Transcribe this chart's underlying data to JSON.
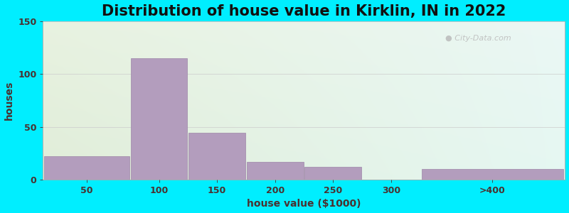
{
  "title": "Distribution of house value in Kirklin, IN in 2022",
  "xlabel": "house value ($1000)",
  "ylabel": "houses",
  "bar_labels": [
    "50",
    "100",
    "150",
    "200",
    "250",
    "300",
    ">400"
  ],
  "bar_heights": [
    22,
    115,
    44,
    17,
    12,
    0,
    10
  ],
  "bar_color": "#b39dbd",
  "bar_edge_color": "#9e86a8",
  "ylim": [
    0,
    150
  ],
  "yticks": [
    0,
    50,
    100,
    150
  ],
  "bar_lefts": [
    0,
    75,
    125,
    175,
    225,
    275,
    325
  ],
  "bar_widths": [
    75,
    50,
    50,
    50,
    50,
    50,
    125
  ],
  "xlim": [
    0,
    450
  ],
  "xticks": [
    37.5,
    100,
    150,
    200,
    250,
    300,
    387.5
  ],
  "outer_bg_color": "#00eeff",
  "grad_topleft": [
    0.91,
    0.95,
    0.88
  ],
  "grad_topright": [
    0.92,
    0.97,
    0.96
  ],
  "grad_botleft": [
    0.88,
    0.93,
    0.85
  ],
  "grad_botright": [
    0.9,
    0.97,
    0.95
  ],
  "title_fontsize": 15,
  "axis_label_fontsize": 10,
  "tick_fontsize": 9,
  "title_color": "#111111",
  "axis_label_color": "#4a3030",
  "tick_color": "#4a3030",
  "watermark_text": "City-Data.com",
  "watermark_color": "#bbbbbb",
  "grid_color": "#cccccc",
  "spine_color": "#aaaaaa"
}
